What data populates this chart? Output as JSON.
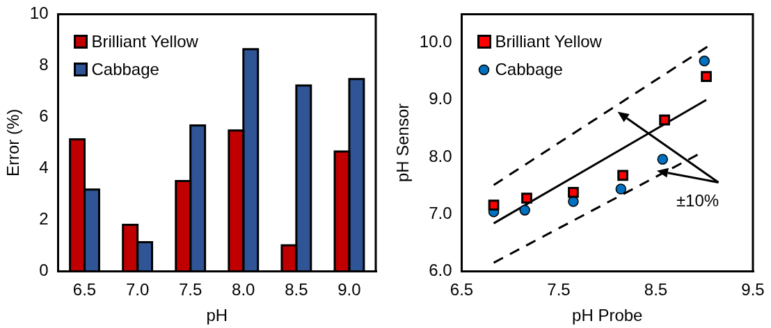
{
  "chart_data": [
    {
      "type": "bar",
      "xlabel": "pH",
      "ylabel": "Error (%)",
      "categories": [
        "6.5",
        "7.0",
        "7.5",
        "8.0",
        "8.5",
        "9.0"
      ],
      "series": [
        {
          "name": "Brilliant Yellow",
          "color": "#c00000",
          "values": [
            5.13,
            1.81,
            3.51,
            5.48,
            1.01,
            4.66
          ]
        },
        {
          "name": "Cabbage",
          "color": "#2f5597",
          "values": [
            3.18,
            1.13,
            5.67,
            8.64,
            7.23,
            7.48
          ]
        }
      ],
      "ylim": [
        0,
        10
      ],
      "yticks": [
        0,
        2,
        4,
        6,
        8,
        10
      ],
      "grid": false,
      "legend": "top left"
    },
    {
      "type": "scatter",
      "xlabel": "pH Probe",
      "ylabel": "pH Sensor",
      "series": [
        {
          "name": "Brilliant Yellow",
          "color": "#ff0000",
          "marker": "square",
          "x": [
            6.83,
            7.17,
            7.65,
            8.16,
            8.59,
            9.02
          ],
          "values": [
            7.16,
            7.28,
            7.38,
            7.68,
            8.65,
            9.41
          ]
        },
        {
          "name": "Cabbage",
          "color": "#0070c0",
          "marker": "circle",
          "x": [
            6.83,
            7.15,
            7.65,
            8.14,
            8.57,
            9.0
          ],
          "values": [
            7.04,
            7.07,
            7.22,
            7.44,
            7.96,
            9.68
          ]
        },
        {
          "type": "line",
          "color": "#000000",
          "line_style": "solid",
          "marker": "none",
          "x": [
            6.83,
            9.02
          ],
          "values": [
            6.84,
            9.0
          ]
        },
        {
          "type": "line",
          "color": "#000000",
          "line_style": "dashed",
          "marker": "none",
          "x": [
            6.83,
            9.03
          ],
          "values": [
            7.51,
            9.93
          ]
        },
        {
          "type": "line",
          "color": "#000000",
          "line_style": "dashed",
          "marker": "none",
          "x": [
            6.83,
            8.93
          ],
          "values": [
            6.15,
            8.04
          ]
        }
      ],
      "annotations": [
        "±10%"
      ],
      "xlim": [
        6.5,
        9.5
      ],
      "xticks": [
        6.5,
        7.5,
        8.5,
        9.5
      ],
      "ylim": [
        6.0,
        10.5
      ],
      "yticks": [
        {
          "value": 6,
          "label": "6.0"
        },
        {
          "value": 7,
          "label": "7.0"
        },
        {
          "value": 8,
          "label": "8.0"
        },
        {
          "value": 9,
          "label": "9.0"
        },
        {
          "value": 10,
          "label": "10.0"
        }
      ],
      "grid": false,
      "legend": "top left"
    }
  ]
}
